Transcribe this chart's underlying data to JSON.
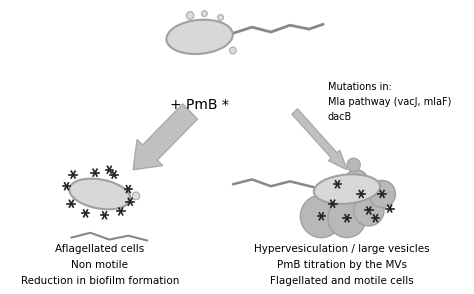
{
  "bg_color": "#ffffff",
  "text_pmb": "+ PmB *",
  "text_mutations": "Mutations in:\nMla pathway (vacJ, mlaF)\ndacB",
  "text_left_title": "Aflagellated cells\nNon motile\nReduction in biofilm formation",
  "text_right_title": "Hypervesiculation / large vesicles\nPmB titration by the MVs\nFlagellated and motile cells",
  "arrow_color": "#c0c0c0",
  "cell_body_color": "#d8d8d8",
  "cell_outline_color": "#a0a0a0",
  "star_color": "#222222",
  "vesicle_color": "#b8b8b8",
  "flagellum_color": "#888888",
  "small_dot_color": "#dddddd"
}
